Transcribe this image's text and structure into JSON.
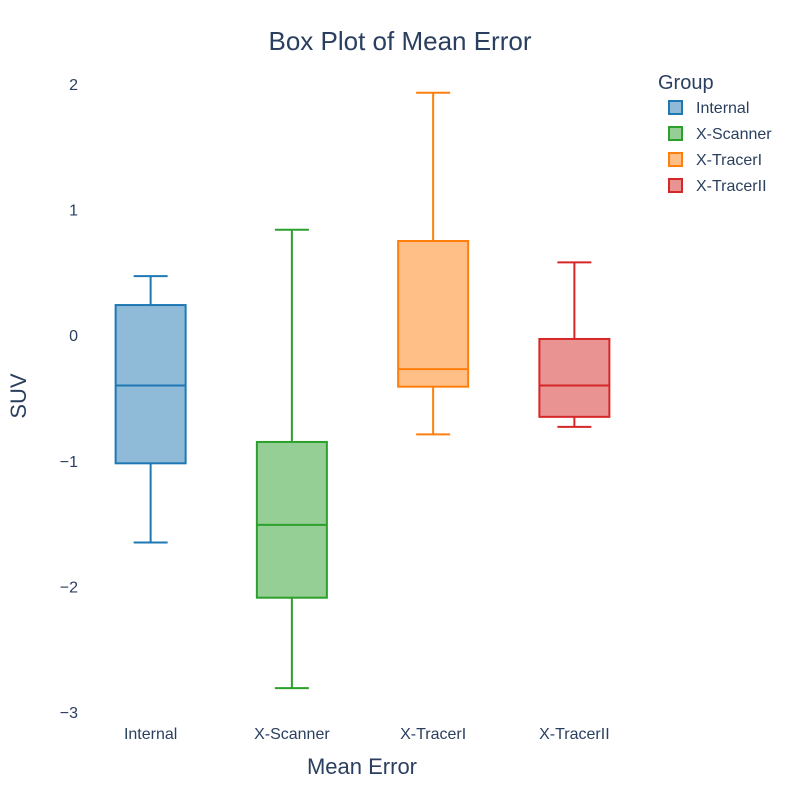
{
  "chart_data": {
    "type": "box",
    "title": "Box Plot of Mean Error",
    "xlabel": "Mean Error",
    "ylabel": "SUV",
    "ylim": [
      -3,
      2
    ],
    "y_ticks": [
      "−3",
      "−2",
      "−1",
      "0",
      "1",
      "2"
    ],
    "y_tick_values": [
      -3,
      -2,
      -1,
      0,
      1,
      2
    ],
    "grid": false,
    "legend": {
      "title": "Group",
      "position": "top-right"
    },
    "series": [
      {
        "name": "Internal",
        "color": "#1f77b4",
        "min": -1.65,
        "q1": -1.02,
        "median": -0.4,
        "q3": 0.24,
        "max": 0.47
      },
      {
        "name": "X-Scanner",
        "color": "#2ca02c",
        "min": -2.81,
        "q1": -2.09,
        "median": -1.51,
        "q3": -0.85,
        "max": 0.84
      },
      {
        "name": "X-TracerI",
        "color": "#ff7f0e",
        "min": -0.79,
        "q1": -0.41,
        "median": -0.27,
        "q3": 0.75,
        "max": 1.93
      },
      {
        "name": "X-TracerII",
        "color": "#d62728",
        "min": -0.73,
        "q1": -0.65,
        "median": -0.4,
        "q3": -0.03,
        "max": 0.58
      }
    ]
  }
}
